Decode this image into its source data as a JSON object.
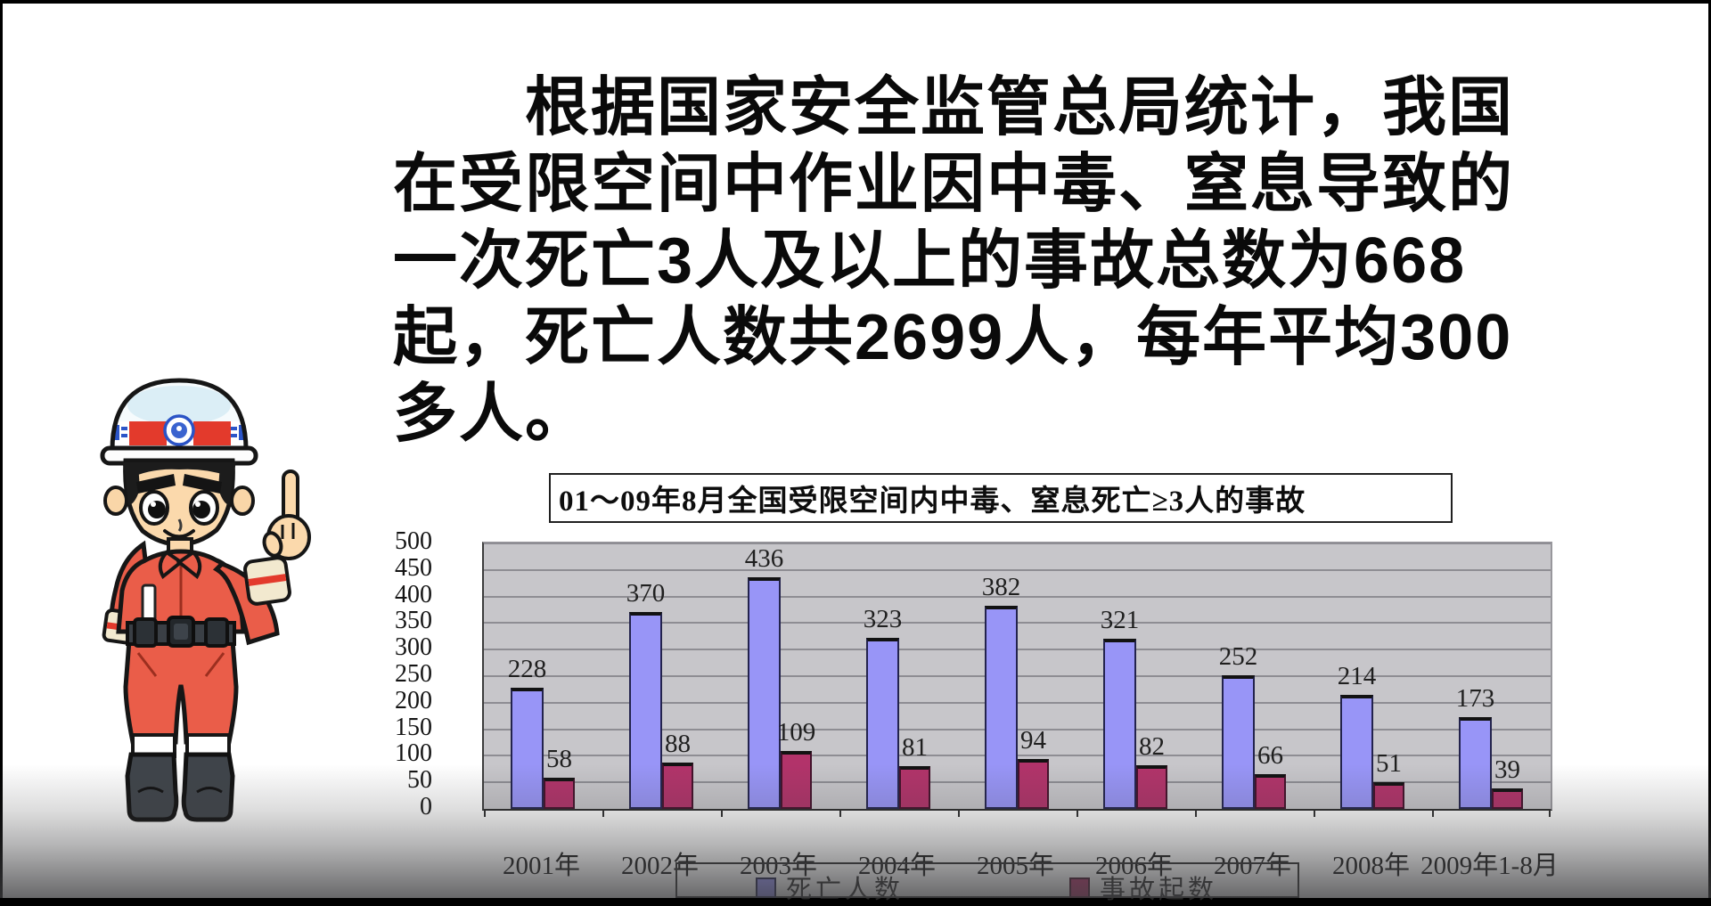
{
  "frame": {
    "border_color": "#000000",
    "slide_background": "#ffffff"
  },
  "paragraph": {
    "lines": [
      "根据国家安全监管总局统计，我国",
      "在受限空间中作业因中毒、窒息导致的",
      "一次死亡3人及以上的事故总数为668",
      "起，死亡人数共2699人，每年平均300",
      "多人。"
    ],
    "full_text": "根据国家安全监管总局统计，我国在受限空间中作业因中毒、窒息导致的一次死亡3人及以上的事故总数为668起，死亡人数共2699人，每年平均300多人。"
  },
  "mascot": {
    "name": "firefighter-mascot",
    "description": "cartoon rescue worker in orange suit and white helmet pointing one finger upward",
    "colors": {
      "suit": "#ea5d49",
      "helmet": "#f6fbfd",
      "helmet_band": "#e33a2c",
      "skin": "#fbd9ac",
      "boots": "#3f444a"
    }
  },
  "chart_data": {
    "type": "bar",
    "title": "01～09年8月全国受限空间内中毒、窒息死亡≥3人的事故",
    "categories": [
      "2001年",
      "2002年",
      "2003年",
      "2004年",
      "2005年",
      "2006年",
      "2007年",
      "2008年",
      "2009年1-8月"
    ],
    "series": [
      {
        "name": "死亡人数",
        "color": "#9895f7",
        "border": "#23234d",
        "values": [
          228,
          370,
          436,
          323,
          382,
          321,
          252,
          214,
          173
        ]
      },
      {
        "name": "事故起数",
        "color": "#b2336a",
        "border": "#43112a",
        "values": [
          58,
          88,
          109,
          81,
          94,
          82,
          66,
          51,
          39
        ]
      }
    ],
    "ylim": [
      0,
      500
    ],
    "ytick_step": 50,
    "yticks": [
      500,
      450,
      400,
      350,
      300,
      250,
      200,
      150,
      100,
      50,
      0
    ],
    "grid": true,
    "legend_position": "bottom",
    "plot_bg": "#c7c6ca",
    "xlabel": "",
    "ylabel": ""
  }
}
